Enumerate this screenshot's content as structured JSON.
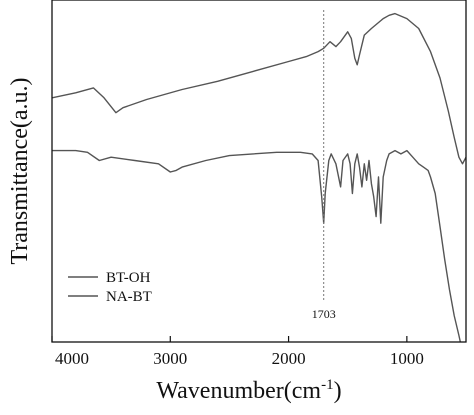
{
  "chart_data": {
    "type": "line",
    "xlabel_main": "Wavenumber",
    "xlabel_unit": "(cm",
    "xlabel_exp": "-1",
    "xlabel_close": ")",
    "ylabel": "Transmittance(a.u.)",
    "xlim": [
      4000,
      500
    ],
    "x_reversed": true,
    "ylim": [
      0,
      100
    ],
    "y_ticks_shown": false,
    "x_ticks": [
      4000,
      3000,
      2000,
      1000
    ],
    "x_tick_labels": [
      "4000",
      "3000",
      "2000",
      "1000"
    ],
    "grid": false,
    "legend_position": "bottom-left",
    "annotation": {
      "text": "1703",
      "x": 1703
    },
    "series": [
      {
        "name": "BT-OH",
        "color": "#555555",
        "points": [
          [
            4000,
            74
          ],
          [
            3800,
            75.5
          ],
          [
            3650,
            77
          ],
          [
            3560,
            74
          ],
          [
            3460,
            69.5
          ],
          [
            3400,
            71
          ],
          [
            3200,
            73.5
          ],
          [
            2900,
            76.5
          ],
          [
            2600,
            79
          ],
          [
            2300,
            82
          ],
          [
            2000,
            85
          ],
          [
            1850,
            86.5
          ],
          [
            1750,
            88
          ],
          [
            1703,
            89
          ],
          [
            1650,
            91
          ],
          [
            1600,
            89.5
          ],
          [
            1560,
            91
          ],
          [
            1500,
            94
          ],
          [
            1470,
            92
          ],
          [
            1440,
            86
          ],
          [
            1420,
            84
          ],
          [
            1400,
            87
          ],
          [
            1360,
            93
          ],
          [
            1300,
            95
          ],
          [
            1200,
            98
          ],
          [
            1150,
            99
          ],
          [
            1100,
            99.5
          ],
          [
            1000,
            98
          ],
          [
            900,
            95
          ],
          [
            800,
            88
          ],
          [
            720,
            80
          ],
          [
            650,
            70
          ],
          [
            600,
            62
          ],
          [
            560,
            56
          ],
          [
            530,
            54
          ],
          [
            500,
            56
          ]
        ]
      },
      {
        "name": "NA-BT",
        "color": "#555555",
        "points": [
          [
            4000,
            58
          ],
          [
            3800,
            58
          ],
          [
            3700,
            57.5
          ],
          [
            3600,
            55
          ],
          [
            3500,
            56
          ],
          [
            3300,
            55
          ],
          [
            3100,
            54
          ],
          [
            3000,
            51.5
          ],
          [
            2950,
            52
          ],
          [
            2900,
            53
          ],
          [
            2700,
            55
          ],
          [
            2500,
            56.5
          ],
          [
            2300,
            57
          ],
          [
            2100,
            57.5
          ],
          [
            1900,
            57.5
          ],
          [
            1800,
            57
          ],
          [
            1750,
            55
          ],
          [
            1720,
            44
          ],
          [
            1703,
            36
          ],
          [
            1690,
            45
          ],
          [
            1660,
            55
          ],
          [
            1640,
            57
          ],
          [
            1600,
            54
          ],
          [
            1560,
            47
          ],
          [
            1540,
            55
          ],
          [
            1500,
            57
          ],
          [
            1480,
            54
          ],
          [
            1460,
            45
          ],
          [
            1440,
            54
          ],
          [
            1420,
            57
          ],
          [
            1400,
            53
          ],
          [
            1380,
            47
          ],
          [
            1360,
            54
          ],
          [
            1340,
            49
          ],
          [
            1320,
            55
          ],
          [
            1300,
            48
          ],
          [
            1280,
            44
          ],
          [
            1260,
            38
          ],
          [
            1240,
            50
          ],
          [
            1220,
            36
          ],
          [
            1200,
            50
          ],
          [
            1170,
            55
          ],
          [
            1150,
            57
          ],
          [
            1100,
            58
          ],
          [
            1050,
            57
          ],
          [
            1000,
            58
          ],
          [
            950,
            56
          ],
          [
            900,
            54
          ],
          [
            860,
            53
          ],
          [
            820,
            52
          ],
          [
            800,
            50
          ],
          [
            760,
            45
          ],
          [
            720,
            35
          ],
          [
            680,
            25
          ],
          [
            640,
            16
          ],
          [
            600,
            8
          ],
          [
            560,
            2
          ],
          [
            530,
            -3
          ]
        ]
      }
    ]
  }
}
